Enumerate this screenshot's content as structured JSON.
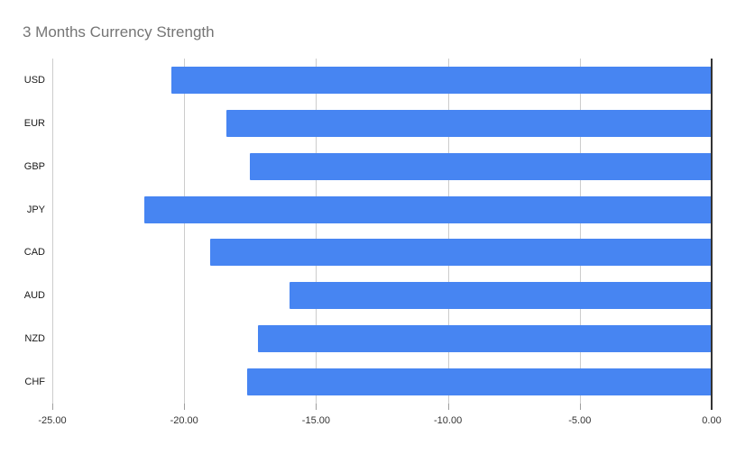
{
  "title": "3 Months Currency Strength",
  "colors": {
    "bar": "#4785f2",
    "gridline": "#cccccc",
    "zero_axis": "#333333",
    "title": "#757575",
    "category_label": "#1a1a1a",
    "tick_label": "#333333",
    "background": "#ffffff"
  },
  "chart_data": {
    "type": "bar",
    "orientation": "horizontal",
    "title": "3 Months Currency Strength",
    "categories": [
      "USD",
      "EUR",
      "GBP",
      "JPY",
      "CAD",
      "AUD",
      "NZD",
      "CHF"
    ],
    "values": [
      -20.5,
      -18.4,
      -17.5,
      -21.5,
      -19.0,
      -16.0,
      -17.2,
      -17.6
    ],
    "xlabel": "",
    "ylabel": "",
    "xlim": [
      -25,
      0
    ],
    "x_ticks": [
      -25,
      -20,
      -15,
      -10,
      -5,
      0
    ],
    "x_tick_labels": [
      "-25.00",
      "-20.00",
      "-15.00",
      "-10.00",
      "-5.00",
      "0.00"
    ],
    "grid": true,
    "legend": false
  }
}
